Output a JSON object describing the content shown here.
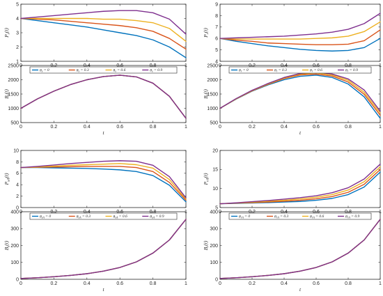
{
  "colors": [
    "#0072BD",
    "#D95319",
    "#EDB120",
    "#7E2F8E"
  ],
  "chart_data": [
    {
      "type": "line",
      "xlabel": "",
      "ylabel": "P_s(t)",
      "xlim": [
        0,
        1
      ],
      "ylim": [
        1,
        5
      ],
      "xticks": [
        "0",
        "0.2",
        "0.4",
        "0.6",
        "0.8",
        "1"
      ],
      "yticks": [
        "1",
        "2",
        "3",
        "4",
        "5"
      ],
      "x": [
        0,
        0.1,
        0.2,
        0.3,
        0.4,
        0.5,
        0.6,
        0.7,
        0.8,
        0.9,
        1
      ],
      "series": [
        {
          "values": [
            4.0,
            3.85,
            3.7,
            3.55,
            3.4,
            3.2,
            3.0,
            2.8,
            2.5,
            2.0,
            1.25
          ]
        },
        {
          "values": [
            4.0,
            3.95,
            3.9,
            3.8,
            3.7,
            3.6,
            3.5,
            3.35,
            3.1,
            2.6,
            1.85
          ]
        },
        {
          "values": [
            4.0,
            4.0,
            4.0,
            4.0,
            4.0,
            3.95,
            3.95,
            3.85,
            3.7,
            3.3,
            2.4
          ]
        },
        {
          "values": [
            4.0,
            4.1,
            4.2,
            4.3,
            4.4,
            4.5,
            4.55,
            4.55,
            4.4,
            3.95,
            2.9
          ]
        }
      ]
    },
    {
      "type": "line",
      "xlabel": "",
      "ylabel": "P_r(t)",
      "xlim": [
        0,
        1
      ],
      "ylim": [
        4,
        9
      ],
      "xticks": [
        "0",
        "0.2",
        "0.4",
        "0.6",
        "0.8",
        "1"
      ],
      "yticks": [
        "4",
        "5",
        "6",
        "7",
        "8",
        "9"
      ],
      "x": [
        0,
        0.1,
        0.2,
        0.3,
        0.4,
        0.5,
        0.6,
        0.7,
        0.8,
        0.9,
        1
      ],
      "series": [
        {
          "values": [
            6.0,
            5.75,
            5.55,
            5.35,
            5.2,
            5.05,
            4.95,
            4.9,
            4.95,
            5.2,
            6.0
          ]
        },
        {
          "values": [
            6.0,
            5.85,
            5.75,
            5.6,
            5.55,
            5.5,
            5.45,
            5.45,
            5.5,
            5.8,
            6.75
          ]
        },
        {
          "values": [
            6.0,
            5.95,
            5.95,
            5.95,
            5.95,
            5.95,
            6.0,
            6.05,
            6.2,
            6.6,
            7.45
          ]
        },
        {
          "values": [
            6.0,
            6.05,
            6.1,
            6.15,
            6.2,
            6.3,
            6.4,
            6.55,
            6.8,
            7.3,
            8.2
          ]
        }
      ]
    },
    {
      "type": "line",
      "xlabel": "t",
      "ylabel": "B_s(t)",
      "xlim": [
        0,
        1
      ],
      "ylim": [
        500,
        2500
      ],
      "xticks": [
        "0",
        "0.2",
        "0.4",
        "0.6",
        "0.8",
        "1"
      ],
      "yticks": [
        "500",
        "1000",
        "1500",
        "2000",
        "2500"
      ],
      "legend": [
        "θ_s = 0",
        "θ_s = 0.3",
        "θ_s = 0.6",
        "θ_s = 0.9"
      ],
      "legend_placement": "top",
      "x": [
        0,
        0.1,
        0.2,
        0.3,
        0.4,
        0.5,
        0.6,
        0.7,
        0.8,
        0.9,
        1
      ],
      "series": [
        {
          "values": [
            1000,
            1330,
            1600,
            1830,
            2000,
            2110,
            2160,
            2100,
            1880,
            1420,
            650
          ]
        },
        {
          "values": [
            1000,
            1330,
            1600,
            1830,
            2000,
            2110,
            2160,
            2100,
            1880,
            1420,
            650
          ]
        },
        {
          "values": [
            1000,
            1330,
            1600,
            1830,
            2000,
            2110,
            2160,
            2100,
            1880,
            1420,
            650
          ]
        },
        {
          "values": [
            1000,
            1330,
            1600,
            1830,
            2000,
            2110,
            2160,
            2100,
            1880,
            1420,
            650
          ]
        }
      ]
    },
    {
      "type": "line",
      "xlabel": "t",
      "ylabel": "B_r(t)",
      "xlim": [
        0,
        1
      ],
      "ylim": [
        500,
        2500
      ],
      "xticks": [
        "0",
        "0.2",
        "0.4",
        "0.6",
        "0.8",
        "1"
      ],
      "yticks": [
        "500",
        "1000",
        "1500",
        "2000",
        "2500"
      ],
      "legend": [
        "θ_r = 0",
        "θ_r = 0.3",
        "θ_r = 0.6",
        "θ_r = 0.9"
      ],
      "legend_placement": "top",
      "x": [
        0,
        0.1,
        0.2,
        0.3,
        0.4,
        0.5,
        0.6,
        0.7,
        0.8,
        0.9,
        1
      ],
      "series": [
        {
          "values": [
            1000,
            1320,
            1600,
            1820,
            2000,
            2120,
            2160,
            2080,
            1850,
            1400,
            650
          ]
        },
        {
          "values": [
            1000,
            1330,
            1610,
            1840,
            2040,
            2170,
            2200,
            2130,
            1920,
            1490,
            760
          ]
        },
        {
          "values": [
            1000,
            1330,
            1620,
            1850,
            2060,
            2200,
            2240,
            2170,
            1980,
            1560,
            840
          ]
        },
        {
          "values": [
            1000,
            1340,
            1630,
            1870,
            2080,
            2220,
            2270,
            2200,
            2030,
            1640,
            900
          ]
        }
      ]
    },
    {
      "type": "line",
      "xlabel": "",
      "ylabel": "P_sA(t)",
      "xlim": [
        0,
        1
      ],
      "ylim": [
        0,
        10
      ],
      "xticks": [
        "0",
        "0.2",
        "0.4",
        "0.6",
        "0.8",
        "1"
      ],
      "yticks": [
        "0",
        "2",
        "4",
        "6",
        "8",
        "10"
      ],
      "x": [
        0,
        0.1,
        0.2,
        0.3,
        0.4,
        0.5,
        0.6,
        0.7,
        0.8,
        0.9,
        1
      ],
      "series": [
        {
          "values": [
            7.0,
            7.0,
            6.95,
            6.9,
            6.85,
            6.75,
            6.6,
            6.3,
            5.6,
            3.9,
            1.0
          ]
        },
        {
          "values": [
            7.0,
            7.05,
            7.1,
            7.15,
            7.2,
            7.2,
            7.2,
            7.0,
            6.3,
            4.4,
            1.3
          ]
        },
        {
          "values": [
            7.0,
            7.1,
            7.25,
            7.4,
            7.5,
            7.6,
            7.7,
            7.5,
            6.9,
            4.9,
            1.5
          ]
        },
        {
          "values": [
            7.0,
            7.2,
            7.45,
            7.7,
            7.9,
            8.1,
            8.2,
            8.1,
            7.4,
            5.4,
            1.7
          ]
        }
      ]
    },
    {
      "type": "line",
      "xlabel": "",
      "ylabel": "P_rA(t)",
      "xlim": [
        0,
        1
      ],
      "ylim": [
        5,
        20
      ],
      "xticks": [
        "0",
        "0.2",
        "0.4",
        "0.6",
        "0.8",
        "1"
      ],
      "yticks": [
        "5",
        "10",
        "15",
        "20"
      ],
      "x": [
        0,
        0.1,
        0.2,
        0.3,
        0.4,
        0.5,
        0.6,
        0.7,
        0.8,
        0.9,
        1
      ],
      "series": [
        {
          "values": [
            6.0,
            6.1,
            6.2,
            6.3,
            6.45,
            6.6,
            6.9,
            7.4,
            8.4,
            10.4,
            14.3
          ]
        },
        {
          "values": [
            6.0,
            6.15,
            6.3,
            6.45,
            6.65,
            6.9,
            7.3,
            7.9,
            9.0,
            11.1,
            15.0
          ]
        },
        {
          "values": [
            6.0,
            6.2,
            6.4,
            6.65,
            6.9,
            7.25,
            7.7,
            8.4,
            9.6,
            11.8,
            15.7
          ]
        },
        {
          "values": [
            6.0,
            6.25,
            6.55,
            6.85,
            7.2,
            7.6,
            8.1,
            8.9,
            10.2,
            12.5,
            16.4
          ]
        }
      ]
    },
    {
      "type": "line",
      "xlabel": "t",
      "ylabel": "B_s(t)",
      "xlim": [
        0,
        1
      ],
      "ylim": [
        0,
        400
      ],
      "xticks": [
        "0",
        "0.2",
        "0.4",
        "0.6",
        "0.8",
        "1"
      ],
      "yticks": [
        "0",
        "100",
        "200",
        "300",
        "400"
      ],
      "legend": [
        "θ_sA = 0",
        "θ_sA = 0.3",
        "θ_sA = 0.6",
        "θ_sA = 0.9"
      ],
      "legend_placement": "top",
      "x": [
        0,
        0.1,
        0.2,
        0.3,
        0.4,
        0.5,
        0.6,
        0.7,
        0.8,
        0.9,
        1
      ],
      "series": [
        {
          "values": [
            5,
            9,
            15,
            23,
            33,
            48,
            70,
            103,
            155,
            233,
            355
          ]
        },
        {
          "values": [
            5,
            9,
            15,
            23,
            33,
            48,
            70,
            103,
            155,
            233,
            355
          ]
        },
        {
          "values": [
            5,
            9,
            15,
            23,
            33,
            48,
            70,
            103,
            155,
            233,
            355
          ]
        },
        {
          "values": [
            5,
            9,
            15,
            23,
            33,
            48,
            70,
            103,
            155,
            233,
            355
          ]
        }
      ]
    },
    {
      "type": "line",
      "xlabel": "t",
      "ylabel": "B_r(t)",
      "xlim": [
        0,
        1
      ],
      "ylim": [
        0,
        400
      ],
      "xticks": [
        "0",
        "0.2",
        "0.4",
        "0.6",
        "0.8",
        "1"
      ],
      "yticks": [
        "0",
        "100",
        "200",
        "300",
        "400"
      ],
      "legend": [
        "θ_rA = 0",
        "θ_rA = 0.3",
        "θ_rA = 0.6",
        "θ_rA = 0.9"
      ],
      "legend_placement": "top",
      "x": [
        0,
        0.1,
        0.2,
        0.3,
        0.4,
        0.5,
        0.6,
        0.7,
        0.8,
        0.9,
        1
      ],
      "series": [
        {
          "values": [
            5,
            9,
            15,
            23,
            33,
            48,
            70,
            103,
            155,
            233,
            355
          ]
        },
        {
          "values": [
            5,
            9,
            15,
            23,
            33,
            48,
            70,
            103,
            155,
            233,
            355
          ]
        },
        {
          "values": [
            5,
            9,
            15,
            23,
            33,
            48,
            70,
            103,
            155,
            233,
            355
          ]
        },
        {
          "values": [
            5,
            9,
            15,
            23,
            33,
            48,
            70,
            103,
            155,
            233,
            355
          ]
        }
      ]
    }
  ]
}
